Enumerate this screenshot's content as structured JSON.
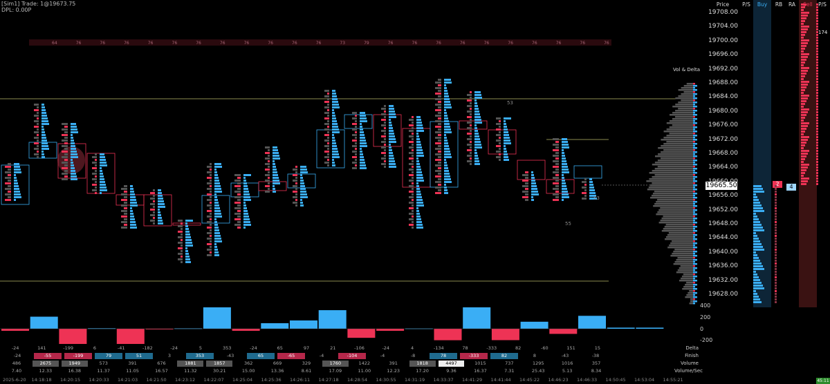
{
  "header": {
    "line1": "[Sim1] Trade: 1@19673.75",
    "line2": "DPL: 0.00P"
  },
  "ladder": {
    "columns": [
      "Price",
      "P/S",
      "Buy",
      "RB",
      "RA",
      "Sell",
      "P/S"
    ],
    "prices": [
      "19708.00",
      "19704.00",
      "19700.00",
      "19696.00",
      "19692.00",
      "19688.00",
      "19684.00",
      "19680.00",
      "19676.00",
      "19672.00",
      "19668.00",
      "19664.00",
      "19660.00",
      "19656.00",
      "19652.00",
      "19648.00",
      "19644.00",
      "19640.00",
      "19636.00",
      "19632.00",
      "19628.00"
    ],
    "current_price": "19665.50",
    "rb_value": "2",
    "ra_value": "4",
    "ps_right_value": "174",
    "colors": {
      "buy": "#3aaef5",
      "sell": "#ee3355",
      "current_bg": "#ffffff"
    }
  },
  "volume_profile": {
    "title": "Vol & Delta"
  },
  "delta_histogram": {
    "axis_labels": [
      "400",
      "200",
      "0",
      "-200"
    ],
    "values": [
      -24,
      141,
      -199,
      6,
      -182,
      -7,
      5,
      353,
      -24,
      65,
      97,
      217,
      -106,
      -24,
      4,
      -134,
      353,
      -133,
      82,
      -60,
      151,
      13,
      13
    ]
  },
  "footer": {
    "row_labels": [
      "Delta",
      "Finish",
      "Volume",
      "Volume/Sec"
    ],
    "delta": [
      "-24",
      "141",
      "-199",
      "6",
      "-41",
      "-182",
      "-24",
      "5",
      "353",
      "-24",
      "65",
      "97",
      "21",
      "-106",
      "-24",
      "4",
      "-134",
      "78",
      "-333",
      "82",
      "-60",
      "151",
      "15"
    ],
    "finish": [
      "-24",
      "-55",
      "-199",
      "79",
      "51",
      "3",
      "353",
      "-43",
      "65",
      "-65",
      "-4",
      "-104",
      "-4",
      "-8",
      "78",
      "-333",
      "82",
      "8",
      "-43",
      "-38"
    ],
    "volume": [
      "486",
      "2675",
      "1949",
      "573",
      "391",
      "676",
      "1881",
      "1857",
      "362",
      "669",
      "329",
      "1760",
      "1422",
      "391",
      "1818",
      "4497",
      "1015",
      "737",
      "1295",
      "1016",
      "357"
    ],
    "volume_sec": [
      "7.40",
      "12.33",
      "16.38",
      "11.37",
      "11.05",
      "16.57",
      "11.32",
      "30.21",
      "15.00",
      "13.36",
      "8.61",
      "17.09",
      "11.00",
      "12.23",
      "17.20",
      "9.36",
      "16.37",
      "7.31",
      "25.43",
      "5.13",
      "8.34"
    ]
  },
  "time_axis": [
    "2025-6-20",
    "14:18:18",
    "14:20:15",
    "14:20:33",
    "14:21:03",
    "14:21:50",
    "14:23:12",
    "14:22:07",
    "14:25:04",
    "14:25:36",
    "14:26:11",
    "14:27:18",
    "14:28:54",
    "14:30:55",
    "14:31:19",
    "14:33:37",
    "14:41:29",
    "14:41:44",
    "14:45:22",
    "14:46:23",
    "14:46:33",
    "14:50:45",
    "14:53:04",
    "14:55:21"
  ],
  "status": {
    "connection": "45:11"
  },
  "chart_labels": {
    "num_53a": "53",
    "num_53b": "53",
    "num_55": "55",
    "top_band_values": [
      "64",
      "76",
      "76",
      "76",
      "76",
      "76",
      "76",
      "76",
      "76",
      "76",
      "76",
      "76",
      "73",
      "79",
      "76",
      "76",
      "76",
      "76",
      "76",
      "76",
      "76",
      "76",
      "76",
      "76"
    ]
  }
}
